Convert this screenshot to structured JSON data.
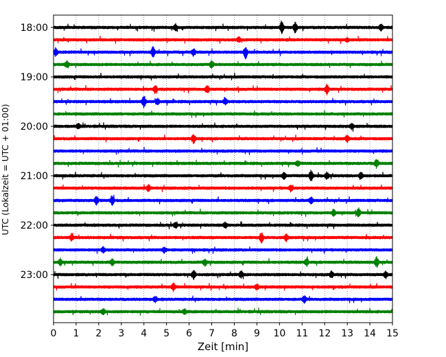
{
  "chart_data": {
    "type": "line",
    "title": "",
    "xlabel": "Zeit  [min]",
    "ylabel": "UTC (Lokalzeit = UTC + 01:00)",
    "xlim": [
      0,
      15
    ],
    "x_ticks": [
      "0",
      "1",
      "2",
      "3",
      "4",
      "5",
      "6",
      "7",
      "8",
      "9",
      "10",
      "11",
      "12",
      "13",
      "14",
      "15"
    ],
    "y_ticks": [
      "18:00",
      "19:00",
      "20:00",
      "21:00",
      "22:00",
      "23:00"
    ],
    "grid": "vertical dotted",
    "trace_colors": [
      "#000000",
      "#ff0000",
      "#0000ff",
      "#008000"
    ],
    "traces": [
      {
        "start": "18:00",
        "color": "#000000"
      },
      {
        "start": "18:15",
        "color": "#ff0000"
      },
      {
        "start": "18:30",
        "color": "#0000ff"
      },
      {
        "start": "18:45",
        "color": "#008000"
      },
      {
        "start": "19:00",
        "color": "#000000"
      },
      {
        "start": "19:15",
        "color": "#ff0000"
      },
      {
        "start": "19:30",
        "color": "#0000ff"
      },
      {
        "start": "19:45",
        "color": "#008000"
      },
      {
        "start": "20:00",
        "color": "#000000"
      },
      {
        "start": "20:15",
        "color": "#ff0000"
      },
      {
        "start": "20:30",
        "color": "#0000ff"
      },
      {
        "start": "20:45",
        "color": "#008000"
      },
      {
        "start": "21:00",
        "color": "#000000"
      },
      {
        "start": "21:15",
        "color": "#ff0000"
      },
      {
        "start": "21:30",
        "color": "#0000ff"
      },
      {
        "start": "21:45",
        "color": "#008000"
      },
      {
        "start": "22:00",
        "color": "#000000"
      },
      {
        "start": "22:15",
        "color": "#ff0000"
      },
      {
        "start": "22:30",
        "color": "#0000ff"
      },
      {
        "start": "22:45",
        "color": "#008000"
      },
      {
        "start": "23:00",
        "color": "#000000"
      },
      {
        "start": "23:15",
        "color": "#ff0000"
      },
      {
        "start": "23:30",
        "color": "#0000ff"
      },
      {
        "start": "23:45",
        "color": "#008000"
      }
    ],
    "events": [
      {
        "trace": 0,
        "min": 5.4,
        "amp": 0.5
      },
      {
        "trace": 0,
        "min": 10.1,
        "amp": 0.9
      },
      {
        "trace": 0,
        "min": 10.7,
        "amp": 0.8
      },
      {
        "trace": 0,
        "min": 14.5,
        "amp": 0.5
      },
      {
        "trace": 1,
        "min": 8.2,
        "amp": 0.4
      },
      {
        "trace": 1,
        "min": 13.0,
        "amp": 0.3
      },
      {
        "trace": 2,
        "min": 0.1,
        "amp": 0.6
      },
      {
        "trace": 2,
        "min": 4.4,
        "amp": 0.8
      },
      {
        "trace": 2,
        "min": 6.2,
        "amp": 0.6
      },
      {
        "trace": 2,
        "min": 8.5,
        "amp": 1.0
      },
      {
        "trace": 3,
        "min": 0.6,
        "amp": 0.6
      },
      {
        "trace": 3,
        "min": 7.0,
        "amp": 0.6
      },
      {
        "trace": 5,
        "min": 4.5,
        "amp": 0.6
      },
      {
        "trace": 5,
        "min": 6.8,
        "amp": 0.6
      },
      {
        "trace": 5,
        "min": 12.1,
        "amp": 0.7
      },
      {
        "trace": 6,
        "min": 4.0,
        "amp": 0.9
      },
      {
        "trace": 6,
        "min": 4.6,
        "amp": 0.5
      },
      {
        "trace": 6,
        "min": 7.6,
        "amp": 0.5
      },
      {
        "trace": 8,
        "min": 1.1,
        "amp": 0.4
      },
      {
        "trace": 8,
        "min": 13.2,
        "amp": 0.4
      },
      {
        "trace": 9,
        "min": 6.2,
        "amp": 0.7
      },
      {
        "trace": 9,
        "min": 13.0,
        "amp": 0.5
      },
      {
        "trace": 11,
        "min": 10.8,
        "amp": 0.5
      },
      {
        "trace": 11,
        "min": 14.3,
        "amp": 0.7
      },
      {
        "trace": 12,
        "min": 10.2,
        "amp": 0.5
      },
      {
        "trace": 12,
        "min": 11.4,
        "amp": 0.9
      },
      {
        "trace": 12,
        "min": 12.1,
        "amp": 0.5
      },
      {
        "trace": 12,
        "min": 13.6,
        "amp": 0.6
      },
      {
        "trace": 13,
        "min": 4.2,
        "amp": 0.5
      },
      {
        "trace": 13,
        "min": 10.5,
        "amp": 0.5
      },
      {
        "trace": 14,
        "min": 1.9,
        "amp": 0.6
      },
      {
        "trace": 14,
        "min": 2.6,
        "amp": 0.8
      },
      {
        "trace": 14,
        "min": 11.4,
        "amp": 0.5
      },
      {
        "trace": 15,
        "min": 12.4,
        "amp": 0.5
      },
      {
        "trace": 15,
        "min": 13.5,
        "amp": 0.7
      },
      {
        "trace": 16,
        "min": 5.4,
        "amp": 0.4
      },
      {
        "trace": 16,
        "min": 7.6,
        "amp": 0.4
      },
      {
        "trace": 17,
        "min": 0.8,
        "amp": 0.5
      },
      {
        "trace": 17,
        "min": 9.2,
        "amp": 0.8
      },
      {
        "trace": 17,
        "min": 10.3,
        "amp": 0.5
      },
      {
        "trace": 18,
        "min": 2.2,
        "amp": 0.4
      },
      {
        "trace": 18,
        "min": 4.9,
        "amp": 0.4
      },
      {
        "trace": 19,
        "min": 0.3,
        "amp": 0.5
      },
      {
        "trace": 19,
        "min": 2.6,
        "amp": 0.5
      },
      {
        "trace": 19,
        "min": 6.7,
        "amp": 0.5
      },
      {
        "trace": 19,
        "min": 11.2,
        "amp": 0.6
      },
      {
        "trace": 19,
        "min": 14.3,
        "amp": 0.8
      },
      {
        "trace": 20,
        "min": 6.2,
        "amp": 0.8
      },
      {
        "trace": 20,
        "min": 8.3,
        "amp": 0.5
      },
      {
        "trace": 20,
        "min": 12.3,
        "amp": 0.5
      },
      {
        "trace": 20,
        "min": 14.7,
        "amp": 0.5
      },
      {
        "trace": 21,
        "min": 5.3,
        "amp": 0.6
      },
      {
        "trace": 21,
        "min": 9.0,
        "amp": 0.4
      },
      {
        "trace": 22,
        "min": 4.5,
        "amp": 0.4
      },
      {
        "trace": 22,
        "min": 11.1,
        "amp": 0.5
      },
      {
        "trace": 23,
        "min": 2.2,
        "amp": 0.4
      },
      {
        "trace": 23,
        "min": 5.8,
        "amp": 0.4
      }
    ]
  }
}
